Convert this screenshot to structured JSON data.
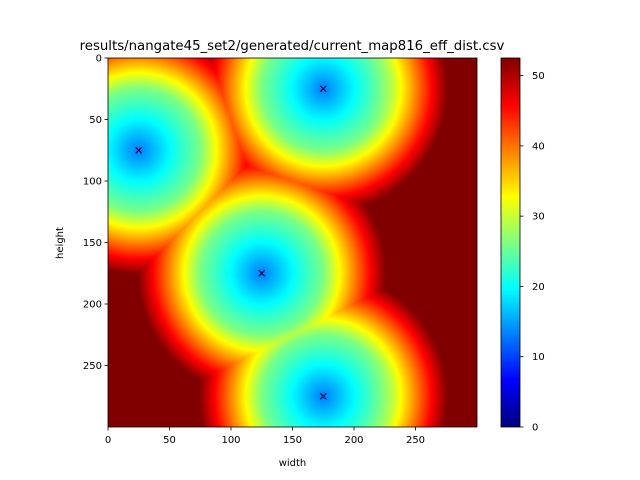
{
  "chart_data": {
    "type": "heatmap",
    "title": "results/nangate45_set2/generated/current_map816_eff_dist.csv",
    "xlabel": "width",
    "ylabel": "height",
    "xlim": [
      0,
      300
    ],
    "ylim": [
      300,
      0
    ],
    "x_ticks": [
      0,
      50,
      100,
      150,
      200,
      250
    ],
    "y_ticks": [
      0,
      50,
      100,
      150,
      200,
      250
    ],
    "colormap": "jet",
    "colorbar": {
      "min": 0,
      "max": 52.5,
      "ticks": [
        0,
        10,
        20,
        30,
        40,
        50
      ]
    },
    "sources": [
      {
        "x": 175,
        "y": 25
      },
      {
        "x": 25,
        "y": 75
      },
      {
        "x": 125,
        "y": 175
      },
      {
        "x": 175,
        "y": 275
      }
    ]
  }
}
